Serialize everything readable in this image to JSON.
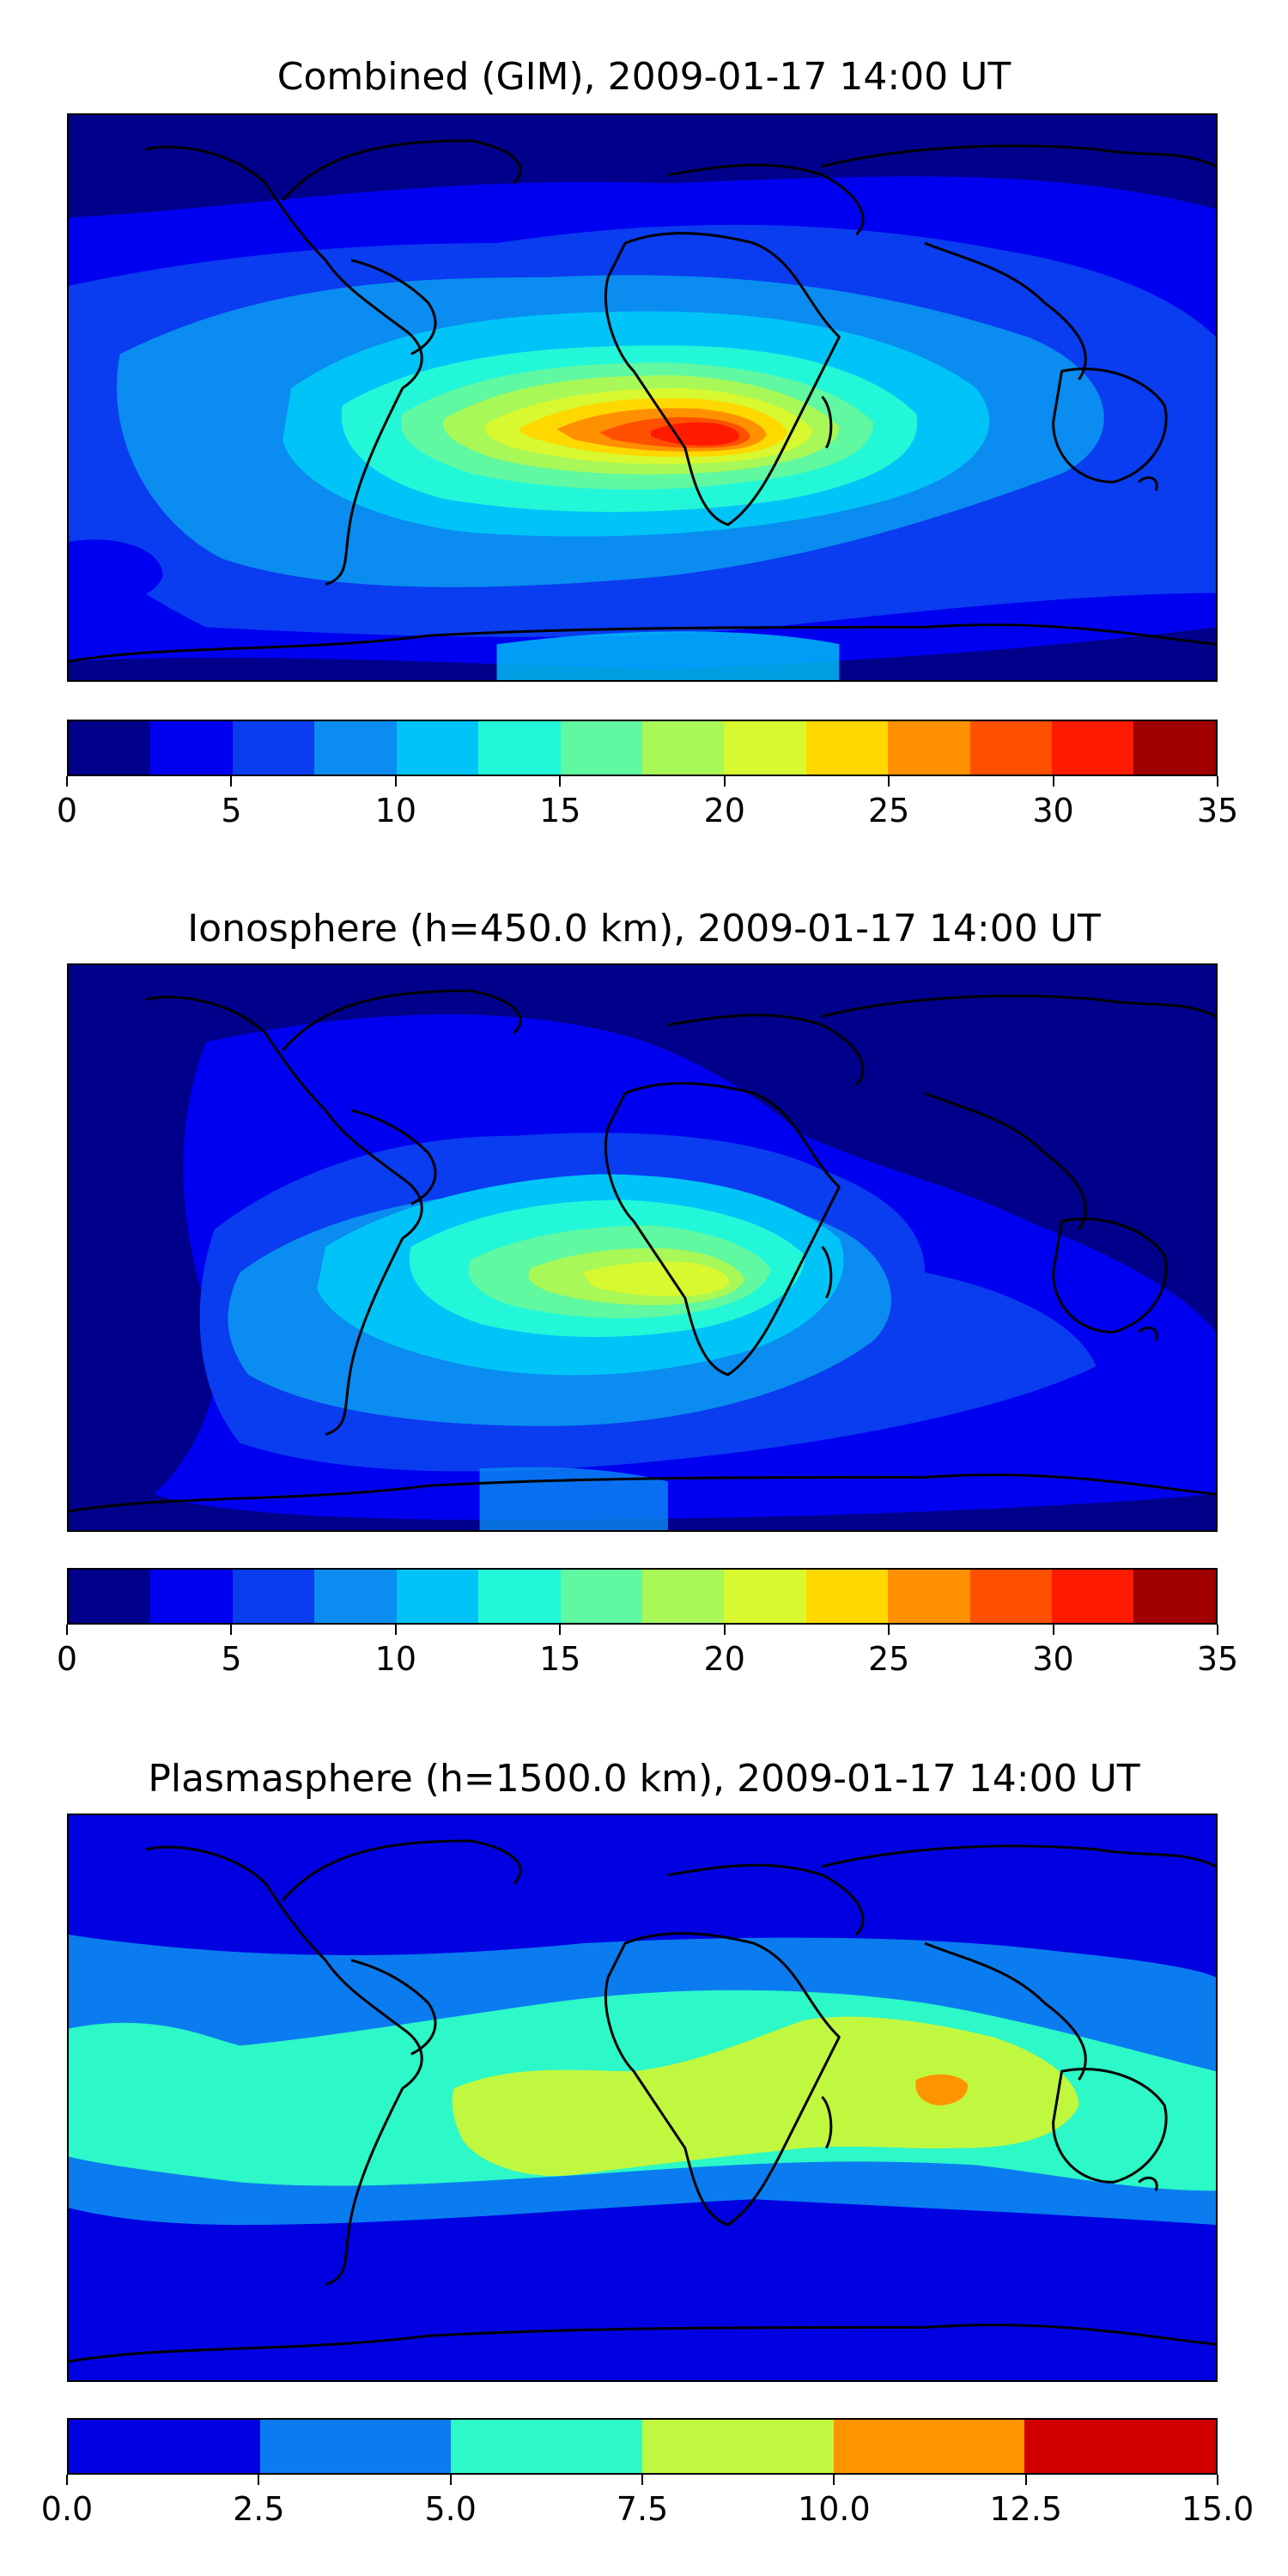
{
  "colorbar_colors_35": [
    "#00008a",
    "#0000f0",
    "#0a3cf0",
    "#0a8cf0",
    "#00c4f8",
    "#22f8d8",
    "#60f8a0",
    "#a8f858",
    "#d8f830",
    "#ffd800",
    "#ff9000",
    "#ff5000",
    "#ff1a00",
    "#a00000"
  ],
  "colorbar_colors_15": [
    "#0000e0",
    "#0a7cf0",
    "#2cf8c8",
    "#c0f840",
    "#ff9400",
    "#d00000"
  ],
  "coast_color": "#000000",
  "panels": [
    {
      "title": "Combined (GIM), 2009-01-17 14:00 UT",
      "ticks": [
        "0",
        "5",
        "10",
        "15",
        "20",
        "25",
        "30",
        "35"
      ],
      "vmin": 0,
      "vmax": 35,
      "max_value_region": "central Africa (~30-32.5)"
    },
    {
      "title": "Ionosphere  (h=450.0 km), 2009-01-17 14:00 UT",
      "ticks": [
        "0",
        "5",
        "10",
        "15",
        "20",
        "25",
        "30",
        "35"
      ],
      "vmin": 0,
      "vmax": 35,
      "max_value_region": "southern Africa (~20-22.5)"
    },
    {
      "title": "Plasmasphere (h=1500.0 km), 2009-01-17 14:00 UT",
      "ticks": [
        "0.0",
        "2.5",
        "5.0",
        "7.5",
        "10.0",
        "12.5",
        "15.0"
      ],
      "vmin": 0,
      "vmax": 15,
      "max_value_region": "Indian Ocean near Sumatra (~10-12.5)"
    }
  ]
}
